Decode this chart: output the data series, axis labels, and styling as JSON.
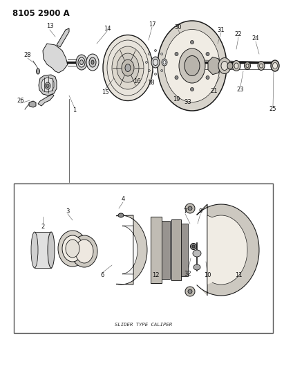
{
  "title": "8105 2900 A",
  "background_color": "#ffffff",
  "fig_width": 4.11,
  "fig_height": 5.33,
  "dpi": 100,
  "box_label": "SLIDER TYPE CALIPER",
  "title_fontsize": 8.5,
  "title_fontweight": "bold",
  "label_fontsize": 6.0,
  "label_color": "#111111",
  "line_color": "#1a1a1a",
  "diagram_color": "#1a1a1a"
}
